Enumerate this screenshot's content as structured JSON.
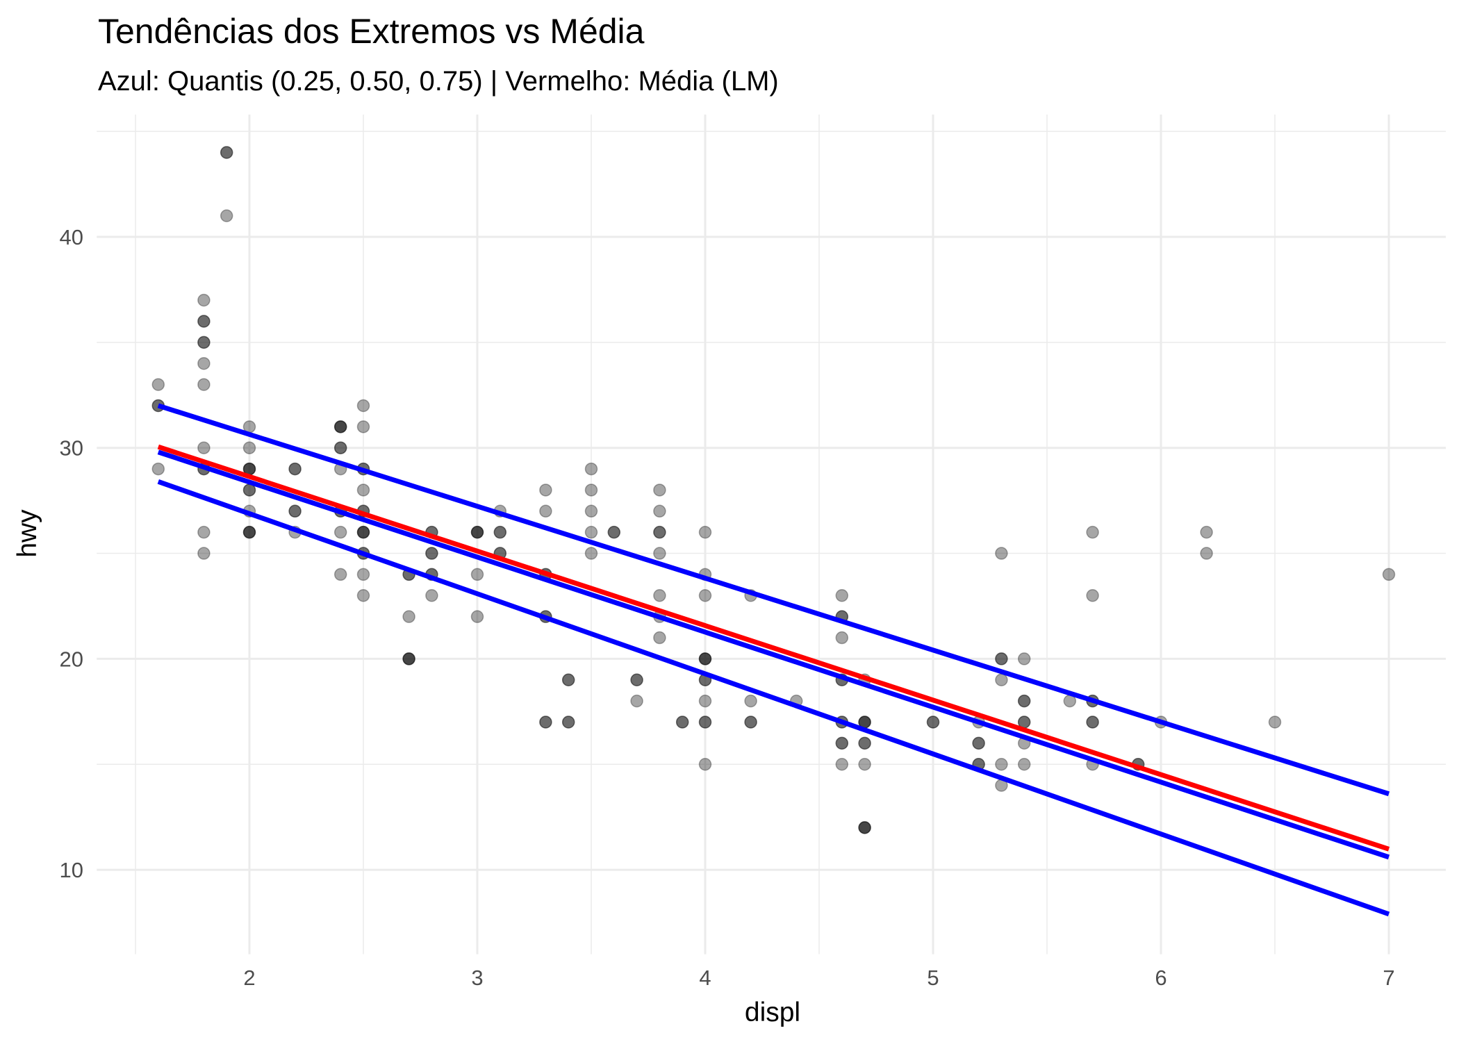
{
  "chart_data": {
    "type": "scatter",
    "title": "Tendências dos Extremos vs Média",
    "subtitle": "Azul: Quantis (0.25, 0.50, 0.75) | Vermelho: Média (LM)",
    "xlabel": "displ",
    "ylabel": "hwy",
    "xlim": [
      1.33,
      7.25
    ],
    "ylim": [
      6.0,
      45.8
    ],
    "xticks": [
      2,
      3,
      4,
      5,
      6,
      7
    ],
    "yticks": [
      10,
      20,
      30,
      40
    ],
    "grid": true,
    "point_color": "#000000",
    "points": [
      [
        1.6,
        33,
        1
      ],
      [
        1.6,
        32,
        2
      ],
      [
        1.6,
        29,
        1
      ],
      [
        1.8,
        37,
        1
      ],
      [
        1.8,
        36,
        2
      ],
      [
        1.8,
        35,
        2
      ],
      [
        1.8,
        34,
        1
      ],
      [
        1.8,
        33,
        1
      ],
      [
        1.8,
        30,
        1
      ],
      [
        1.8,
        29,
        2
      ],
      [
        1.8,
        26,
        1
      ],
      [
        1.8,
        25,
        1
      ],
      [
        1.9,
        44,
        2
      ],
      [
        1.9,
        41,
        1
      ],
      [
        2.0,
        31,
        1
      ],
      [
        2.0,
        30,
        1
      ],
      [
        2.0,
        29,
        3
      ],
      [
        2.0,
        28,
        2
      ],
      [
        2.0,
        27,
        1
      ],
      [
        2.0,
        26,
        3
      ],
      [
        2.2,
        29,
        2
      ],
      [
        2.2,
        27,
        2
      ],
      [
        2.2,
        26,
        1
      ],
      [
        2.4,
        31,
        3
      ],
      [
        2.4,
        30,
        2
      ],
      [
        2.4,
        29,
        1
      ],
      [
        2.4,
        27,
        2
      ],
      [
        2.4,
        26,
        1
      ],
      [
        2.4,
        24,
        1
      ],
      [
        2.5,
        32,
        1
      ],
      [
        2.5,
        31,
        1
      ],
      [
        2.5,
        29,
        2
      ],
      [
        2.5,
        28,
        1
      ],
      [
        2.5,
        27,
        2
      ],
      [
        2.5,
        26,
        3
      ],
      [
        2.5,
        25,
        2
      ],
      [
        2.5,
        24,
        1
      ],
      [
        2.5,
        23,
        1
      ],
      [
        2.7,
        24,
        2
      ],
      [
        2.7,
        22,
        1
      ],
      [
        2.7,
        20,
        3
      ],
      [
        2.8,
        26,
        2
      ],
      [
        2.8,
        25,
        2
      ],
      [
        2.8,
        24,
        2
      ],
      [
        2.8,
        23,
        1
      ],
      [
        3.0,
        26,
        3
      ],
      [
        3.0,
        24,
        1
      ],
      [
        3.0,
        22,
        1
      ],
      [
        3.1,
        27,
        1
      ],
      [
        3.1,
        26,
        2
      ],
      [
        3.1,
        25,
        2
      ],
      [
        3.3,
        28,
        1
      ],
      [
        3.3,
        27,
        1
      ],
      [
        3.3,
        24,
        2
      ],
      [
        3.3,
        22,
        2
      ],
      [
        3.3,
        17,
        2
      ],
      [
        3.4,
        19,
        2
      ],
      [
        3.4,
        17,
        2
      ],
      [
        3.5,
        29,
        1
      ],
      [
        3.5,
        28,
        1
      ],
      [
        3.5,
        27,
        1
      ],
      [
        3.5,
        26,
        1
      ],
      [
        3.5,
        25,
        1
      ],
      [
        3.6,
        26,
        2
      ],
      [
        3.7,
        19,
        2
      ],
      [
        3.7,
        18,
        1
      ],
      [
        3.8,
        28,
        1
      ],
      [
        3.8,
        27,
        1
      ],
      [
        3.8,
        26,
        2
      ],
      [
        3.8,
        25,
        1
      ],
      [
        3.8,
        23,
        1
      ],
      [
        3.8,
        22,
        1
      ],
      [
        3.8,
        21,
        1
      ],
      [
        3.9,
        17,
        2
      ],
      [
        4.0,
        26,
        1
      ],
      [
        4.0,
        24,
        1
      ],
      [
        4.0,
        23,
        1
      ],
      [
        4.0,
        20,
        3
      ],
      [
        4.0,
        19,
        2
      ],
      [
        4.0,
        18,
        1
      ],
      [
        4.0,
        17,
        2
      ],
      [
        4.0,
        15,
        1
      ],
      [
        4.2,
        23,
        1
      ],
      [
        4.2,
        18,
        1
      ],
      [
        4.2,
        17,
        2
      ],
      [
        4.4,
        18,
        1
      ],
      [
        4.6,
        23,
        1
      ],
      [
        4.6,
        22,
        2
      ],
      [
        4.6,
        21,
        1
      ],
      [
        4.6,
        19,
        2
      ],
      [
        4.6,
        17,
        2
      ],
      [
        4.6,
        16,
        2
      ],
      [
        4.6,
        15,
        1
      ],
      [
        4.7,
        19,
        1
      ],
      [
        4.7,
        17,
        3
      ],
      [
        4.7,
        16,
        2
      ],
      [
        4.7,
        15,
        1
      ],
      [
        4.7,
        12,
        3
      ],
      [
        5.0,
        17,
        2
      ],
      [
        5.2,
        17,
        1
      ],
      [
        5.2,
        16,
        2
      ],
      [
        5.2,
        15,
        2
      ],
      [
        5.3,
        25,
        1
      ],
      [
        5.3,
        20,
        2
      ],
      [
        5.3,
        19,
        1
      ],
      [
        5.3,
        15,
        1
      ],
      [
        5.3,
        14,
        1
      ],
      [
        5.4,
        20,
        1
      ],
      [
        5.4,
        18,
        2
      ],
      [
        5.4,
        17,
        2
      ],
      [
        5.4,
        16,
        1
      ],
      [
        5.4,
        15,
        1
      ],
      [
        5.6,
        18,
        1
      ],
      [
        5.7,
        26,
        1
      ],
      [
        5.7,
        23,
        1
      ],
      [
        5.7,
        18,
        2
      ],
      [
        5.7,
        17,
        2
      ],
      [
        5.7,
        15,
        1
      ],
      [
        5.9,
        15,
        2
      ],
      [
        6.0,
        17,
        1
      ],
      [
        6.2,
        26,
        1
      ],
      [
        6.2,
        25,
        1
      ],
      [
        6.5,
        17,
        1
      ],
      [
        7.0,
        24,
        1
      ]
    ],
    "lines": [
      {
        "name": "Quantil 0.75",
        "color": "#0000ff",
        "x": [
          1.6,
          7.0
        ],
        "y": [
          32.0,
          13.6
        ]
      },
      {
        "name": "Quantil 0.50",
        "color": "#0000ff",
        "x": [
          1.6,
          7.0
        ],
        "y": [
          29.8,
          10.6
        ]
      },
      {
        "name": "Quantil 0.25",
        "color": "#0000ff",
        "x": [
          1.6,
          7.0
        ],
        "y": [
          28.4,
          7.9
        ]
      },
      {
        "name": "Média (LM)",
        "color": "#ff0000",
        "x": [
          1.6,
          7.0
        ],
        "y": [
          30.05,
          10.98
        ]
      }
    ]
  }
}
